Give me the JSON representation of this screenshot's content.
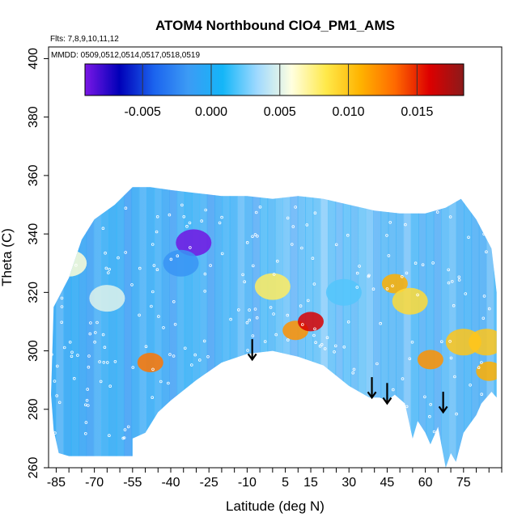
{
  "chart_data": {
    "type": "heatmap",
    "title": "ATOM4 Northbound ClO4_PM1_AMS",
    "annotations": {
      "flights": "Flts: 7,8,9,10,11,12",
      "dates": "MMDD: 0509,0512,0514,0517,0518,0519"
    },
    "xlabel": "Latitude (deg N)",
    "ylabel": "Theta (C)",
    "xlim": [
      -88,
      90
    ],
    "ylim": [
      260,
      404
    ],
    "x_ticks": [
      -85,
      -70,
      -55,
      -40,
      -25,
      -10,
      5,
      15,
      30,
      45,
      60,
      75
    ],
    "y_ticks": [
      260,
      280,
      300,
      320,
      340,
      360,
      380,
      400
    ],
    "colorbar": {
      "range": [
        -0.0092,
        0.0184
      ],
      "ticks": [
        -0.005,
        0.0,
        0.005,
        0.01,
        0.015
      ],
      "tick_labels": [
        "-0.005",
        "0.000",
        "0.005",
        "0.010",
        "0.015"
      ],
      "colors": [
        "#7b17e6",
        "#0000b8",
        "#1b63ee",
        "#3c9bf5",
        "#14b6f8",
        "#9fd9ff",
        "#ffffe0",
        "#ffe94a",
        "#ffb300",
        "#ff6a00",
        "#dd0000",
        "#8b1a1a"
      ]
    },
    "data_extent_upper": [
      [
        -86,
        315
      ],
      [
        -80,
        325
      ],
      [
        -75,
        338
      ],
      [
        -70,
        345
      ],
      [
        -62,
        350
      ],
      [
        -55,
        356
      ],
      [
        -48,
        356
      ],
      [
        -40,
        355
      ],
      [
        -30,
        354
      ],
      [
        -20,
        353
      ],
      [
        -10,
        353
      ],
      [
        0,
        352
      ],
      [
        10,
        353
      ],
      [
        20,
        352
      ],
      [
        30,
        350
      ],
      [
        40,
        348
      ],
      [
        50,
        347
      ],
      [
        60,
        347
      ],
      [
        68,
        349
      ],
      [
        74,
        352
      ],
      [
        80,
        345
      ],
      [
        86,
        335
      ],
      [
        88,
        320
      ]
    ],
    "data_extent_lower": [
      [
        88,
        284
      ],
      [
        86,
        286
      ],
      [
        82,
        282
      ],
      [
        80,
        278
      ],
      [
        75,
        272
      ],
      [
        72,
        262
      ],
      [
        70,
        265
      ],
      [
        68,
        260
      ],
      [
        65,
        274
      ],
      [
        62,
        268
      ],
      [
        60,
        272
      ],
      [
        57,
        276
      ],
      [
        55,
        270
      ],
      [
        52,
        282
      ],
      [
        48,
        285
      ],
      [
        45,
        283
      ],
      [
        42,
        284
      ],
      [
        38,
        284
      ],
      [
        30,
        288
      ],
      [
        20,
        295
      ],
      [
        10,
        298
      ],
      [
        0,
        300
      ],
      [
        -10,
        299
      ],
      [
        -20,
        296
      ],
      [
        -30,
        290
      ],
      [
        -40,
        283
      ],
      [
        -45,
        279
      ],
      [
        -50,
        272
      ],
      [
        -55,
        270
      ],
      [
        -55,
        264
      ],
      [
        -70,
        264
      ],
      [
        -80,
        264
      ],
      [
        -84,
        265
      ],
      [
        -86,
        273
      ],
      [
        -87,
        285
      ]
    ],
    "features": [
      {
        "lat": -31,
        "theta": 337,
        "value": -0.009
      },
      {
        "lat": -36,
        "theta": 330,
        "value": -0.002
      },
      {
        "lat": -48,
        "theta": 296,
        "value": 0.013
      },
      {
        "lat": 9,
        "theta": 307,
        "value": 0.012
      },
      {
        "lat": 15,
        "theta": 310,
        "value": 0.016
      },
      {
        "lat": 0,
        "theta": 322,
        "value": 0.008
      },
      {
        "lat": 48,
        "theta": 323,
        "value": 0.011
      },
      {
        "lat": 54,
        "theta": 317,
        "value": 0.009
      },
      {
        "lat": 62,
        "theta": 297,
        "value": 0.012
      },
      {
        "lat": 75,
        "theta": 303,
        "value": 0.01
      },
      {
        "lat": 84,
        "theta": 303,
        "value": 0.01
      },
      {
        "lat": 85,
        "theta": 293,
        "value": 0.011
      },
      {
        "lat": 28,
        "theta": 320,
        "value": 0.002
      },
      {
        "lat": -65,
        "theta": 318,
        "value": 0.005
      },
      {
        "lat": -80,
        "theta": 330,
        "value": 0.006
      }
    ],
    "arrows": [
      {
        "lat": -8,
        "theta_top": 304,
        "theta_bottom": 297
      },
      {
        "lat": 39,
        "theta_top": 291,
        "theta_bottom": 284
      },
      {
        "lat": 45,
        "theta_top": 289,
        "theta_bottom": 282
      },
      {
        "lat": 67,
        "theta_top": 286,
        "theta_bottom": 279
      }
    ]
  }
}
